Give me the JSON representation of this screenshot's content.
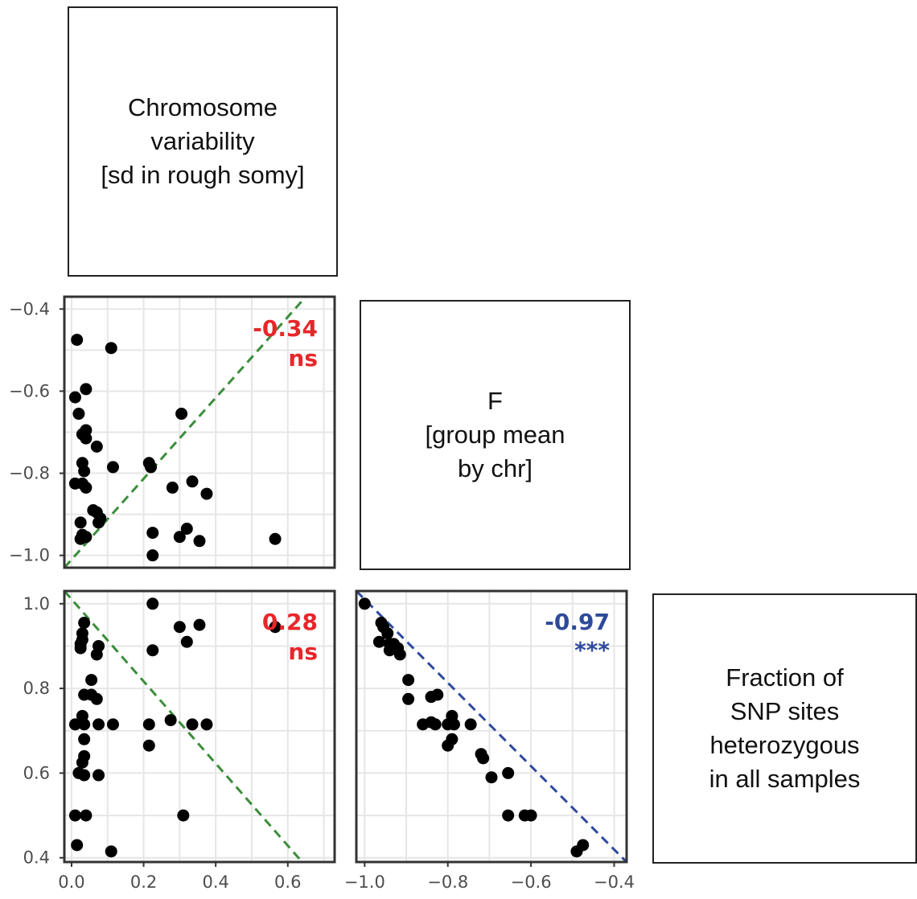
{
  "labels": {
    "var1": "Chromosome\nvariability\n[sd in rough somy]",
    "var2": "F\n[group mean\nby chr]",
    "var3": "Fraction of\nSNP sites\nheterozygous\nin all samples"
  },
  "colors": {
    "red": "#e8262a",
    "blue": "#2e4a9b",
    "green": "#3b8d3b",
    "blue_line": "#2e4a9b",
    "point": "#000000",
    "grid": "#e6e6e6"
  },
  "chart_data": [
    {
      "type": "scatter",
      "panel": "F vs Chromosome variability",
      "xlim": [
        -0.02,
        0.73
      ],
      "ylim": [
        -1.03,
        -0.37
      ],
      "x_ticks": [
        0.0,
        0.2,
        0.4,
        0.6
      ],
      "y_ticks": [
        -1.0,
        -0.8,
        -0.6,
        -0.4
      ],
      "y_tick_labels": [
        "−1.0",
        "−0.8",
        "−0.6",
        "−0.4"
      ],
      "corr": "-0.34",
      "signif": "ns",
      "corr_color": "red",
      "trend_line": {
        "color": "green",
        "points": [
          [
            -0.02,
            -1.03
          ],
          [
            0.65,
            -0.37
          ]
        ]
      },
      "points": [
        [
          0.015,
          -0.475
        ],
        [
          0.11,
          -0.495
        ],
        [
          0.01,
          -0.615
        ],
        [
          0.04,
          -0.595
        ],
        [
          0.02,
          -0.655
        ],
        [
          0.305,
          -0.655
        ],
        [
          0.04,
          -0.695
        ],
        [
          0.03,
          -0.705
        ],
        [
          0.04,
          -0.715
        ],
        [
          0.07,
          -0.735
        ],
        [
          0.03,
          -0.775
        ],
        [
          0.215,
          -0.775
        ],
        [
          0.115,
          -0.785
        ],
        [
          0.22,
          -0.785
        ],
        [
          0.035,
          -0.795
        ],
        [
          0.01,
          -0.825
        ],
        [
          0.03,
          -0.825
        ],
        [
          0.04,
          -0.835
        ],
        [
          0.335,
          -0.82
        ],
        [
          0.28,
          -0.835
        ],
        [
          0.375,
          -0.85
        ],
        [
          0.06,
          -0.89
        ],
        [
          0.07,
          -0.895
        ],
        [
          0.08,
          -0.91
        ],
        [
          0.075,
          -0.92
        ],
        [
          0.025,
          -0.92
        ],
        [
          0.32,
          -0.935
        ],
        [
          0.225,
          -0.945
        ],
        [
          0.03,
          -0.95
        ],
        [
          0.04,
          -0.955
        ],
        [
          0.025,
          -0.96
        ],
        [
          0.3,
          -0.955
        ],
        [
          0.355,
          -0.965
        ],
        [
          0.565,
          -0.96
        ],
        [
          0.225,
          -1.0
        ]
      ]
    },
    {
      "type": "scatter",
      "panel": "Fraction heterozygous vs Chromosome variability",
      "xlim": [
        -0.02,
        0.73
      ],
      "ylim": [
        0.39,
        1.03
      ],
      "x_ticks": [
        0.0,
        0.2,
        0.4,
        0.6
      ],
      "x_tick_labels": [
        "0.0",
        "0.2",
        "0.4",
        "0.6"
      ],
      "y_ticks": [
        0.4,
        0.6,
        0.8,
        1.0
      ],
      "y_tick_labels": [
        "0.4",
        "0.6",
        "0.8",
        "1.0"
      ],
      "corr": "0.28",
      "signif": "ns",
      "corr_color": "red",
      "trend_line": {
        "color": "green",
        "points": [
          [
            -0.02,
            1.03
          ],
          [
            0.64,
            0.39
          ]
        ]
      },
      "points": [
        [
          0.225,
          1.0
        ],
        [
          0.035,
          0.955
        ],
        [
          0.565,
          0.945
        ],
        [
          0.355,
          0.95
        ],
        [
          0.3,
          0.945
        ],
        [
          0.03,
          0.93
        ],
        [
          0.03,
          0.915
        ],
        [
          0.32,
          0.91
        ],
        [
          0.025,
          0.905
        ],
        [
          0.075,
          0.9
        ],
        [
          0.025,
          0.895
        ],
        [
          0.225,
          0.89
        ],
        [
          0.07,
          0.88
        ],
        [
          0.055,
          0.82
        ],
        [
          0.035,
          0.785
        ],
        [
          0.055,
          0.785
        ],
        [
          0.07,
          0.775
        ],
        [
          0.03,
          0.735
        ],
        [
          0.01,
          0.715
        ],
        [
          0.035,
          0.715
        ],
        [
          0.075,
          0.715
        ],
        [
          0.115,
          0.715
        ],
        [
          0.215,
          0.715
        ],
        [
          0.275,
          0.725
        ],
        [
          0.335,
          0.715
        ],
        [
          0.375,
          0.715
        ],
        [
          0.035,
          0.68
        ],
        [
          0.215,
          0.665
        ],
        [
          0.035,
          0.64
        ],
        [
          0.03,
          0.625
        ],
        [
          0.02,
          0.6
        ],
        [
          0.035,
          0.595
        ],
        [
          0.075,
          0.595
        ],
        [
          0.01,
          0.5
        ],
        [
          0.04,
          0.5
        ],
        [
          0.31,
          0.5
        ],
        [
          0.015,
          0.43
        ],
        [
          0.11,
          0.415
        ]
      ]
    },
    {
      "type": "scatter",
      "panel": "Fraction heterozygous vs F",
      "xlim": [
        -1.02,
        -0.37
      ],
      "ylim": [
        0.39,
        1.03
      ],
      "x_ticks": [
        -1.0,
        -0.8,
        -0.6,
        -0.4
      ],
      "x_tick_labels": [
        "−1.0",
        "−0.8",
        "−0.6",
        "−0.4"
      ],
      "y_ticks": [
        0.4,
        0.6,
        0.8,
        1.0
      ],
      "corr": "-0.97",
      "signif": "***",
      "corr_color": "blue",
      "trend_line": {
        "color": "blue_line",
        "points": [
          [
            -1.02,
            1.03
          ],
          [
            -0.37,
            0.39
          ]
        ]
      },
      "points": [
        [
          -1.0,
          1.0
        ],
        [
          -0.96,
          0.955
        ],
        [
          -0.955,
          0.945
        ],
        [
          -0.945,
          0.93
        ],
        [
          -0.965,
          0.91
        ],
        [
          -0.94,
          0.905
        ],
        [
          -0.93,
          0.905
        ],
        [
          -0.92,
          0.895
        ],
        [
          -0.94,
          0.89
        ],
        [
          -0.915,
          0.88
        ],
        [
          -0.895,
          0.82
        ],
        [
          -0.895,
          0.775
        ],
        [
          -0.84,
          0.78
        ],
        [
          -0.825,
          0.785
        ],
        [
          -0.86,
          0.715
        ],
        [
          -0.84,
          0.72
        ],
        [
          -0.83,
          0.715
        ],
        [
          -0.8,
          0.715
        ],
        [
          -0.79,
          0.735
        ],
        [
          -0.785,
          0.715
        ],
        [
          -0.745,
          0.715
        ],
        [
          -0.79,
          0.68
        ],
        [
          -0.8,
          0.665
        ],
        [
          -0.72,
          0.645
        ],
        [
          -0.715,
          0.635
        ],
        [
          -0.695,
          0.59
        ],
        [
          -0.655,
          0.6
        ],
        [
          -0.655,
          0.5
        ],
        [
          -0.615,
          0.5
        ],
        [
          -0.6,
          0.5
        ],
        [
          -0.49,
          0.415
        ],
        [
          -0.475,
          0.43
        ]
      ]
    }
  ]
}
